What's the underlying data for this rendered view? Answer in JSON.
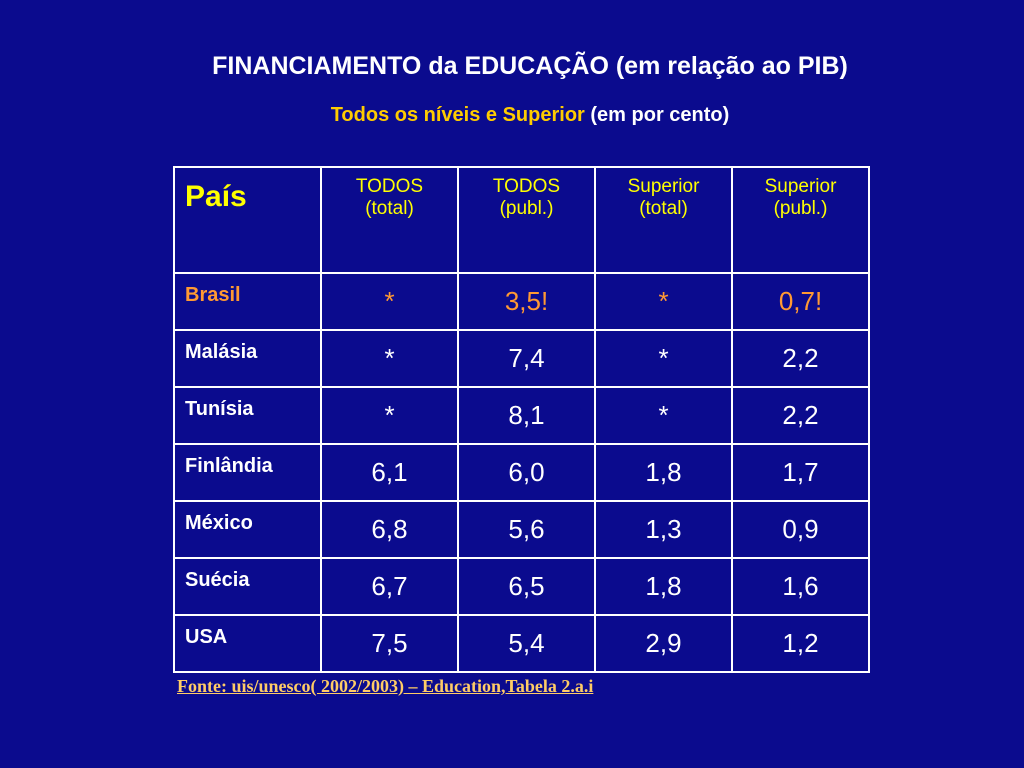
{
  "header": {
    "title": "FINANCIAMENTO da EDUCAÇÃO (em relação ao PIB)",
    "subtitle_highlight": "Todos os níveis e Superior",
    "subtitle_rest": "(em por cento)"
  },
  "table": {
    "header": [
      "País",
      [
        "TODOS",
        "(total)"
      ],
      [
        "TODOS",
        "(publ.)"
      ],
      [
        "Superior",
        "(total)"
      ],
      [
        "Superior",
        "(publ.)"
      ]
    ],
    "rows": [
      [
        "Brasil",
        "*",
        "3,5!",
        "*",
        "0,7!"
      ],
      [
        "Malásia",
        "*",
        "7,4",
        "*",
        "2,2"
      ],
      [
        "Tunísia",
        "*",
        "8,1",
        "*",
        "2,2"
      ],
      [
        "Finlândia",
        "6,1",
        "6,0",
        "1,8",
        "1,7"
      ],
      [
        "México",
        "6,8",
        "5,6",
        "1,3",
        "0,9"
      ],
      [
        "Suécia",
        "6,7",
        "6,5",
        "1,8",
        "1,6"
      ],
      [
        "USA",
        "7,5",
        "5,4",
        "2,9",
        "1,2"
      ]
    ]
  },
  "footer": {
    "source": "Fonte: uis/unesco( 2002/2003) – Education,Tabela 2.a.i"
  }
}
